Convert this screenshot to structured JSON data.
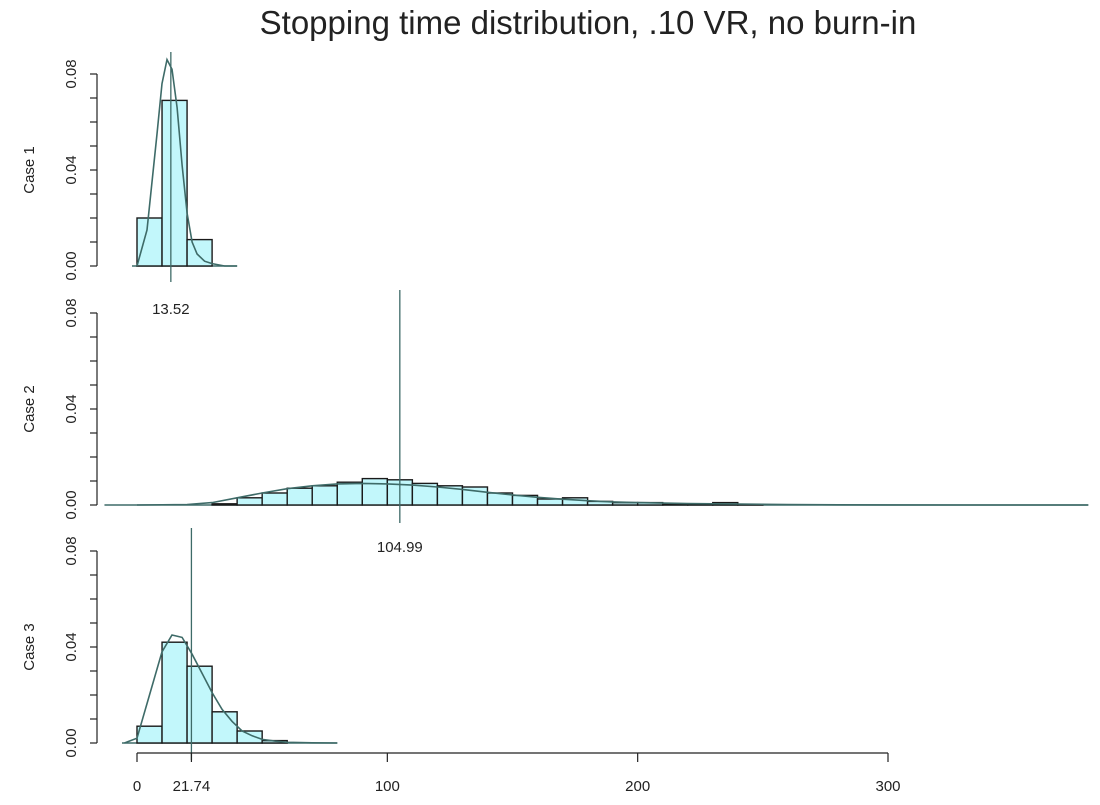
{
  "chart_data": {
    "type": "histogram",
    "title": "Stopping time distribution, .10 VR, no burn-in",
    "xlim": [
      0,
      300
    ],
    "ylim": [
      0,
      0.08
    ],
    "y_ticks": [
      "0.00",
      "0.04",
      "0.08"
    ],
    "x_ticks": [
      "0",
      "21.74",
      "100",
      "200",
      "300"
    ],
    "x_tick_values": [
      0,
      21.74,
      100,
      200,
      300
    ],
    "grid": false,
    "colors": {
      "bar_fill": "#c2f7fb",
      "bar_stroke": "#1a1a1a",
      "density_line": "#3e6b68",
      "mean_line": "#3e6b68",
      "axis": "#222222"
    },
    "panels": [
      {
        "label": "Case 1",
        "mean": 13.52,
        "mean_label": "13.52",
        "bin_width": 10,
        "bins": [
          {
            "start": 0,
            "density": 0.02
          },
          {
            "start": 10,
            "density": 0.069
          },
          {
            "start": 20,
            "density": 0.011
          }
        ],
        "density_curve": [
          [
            0,
            0
          ],
          [
            4,
            0.015
          ],
          [
            8,
            0.055
          ],
          [
            10,
            0.076
          ],
          [
            12,
            0.086
          ],
          [
            14,
            0.082
          ],
          [
            16,
            0.066
          ],
          [
            18,
            0.042
          ],
          [
            20,
            0.022
          ],
          [
            22,
            0.01
          ],
          [
            24,
            0.005
          ],
          [
            27,
            0.002
          ],
          [
            30,
            0.001
          ],
          [
            35,
            0
          ],
          [
            40,
            0
          ]
        ]
      },
      {
        "label": "Case 2",
        "mean": 104.99,
        "mean_label": "104.99",
        "bin_width": 10,
        "bins": [
          {
            "start": 30,
            "density": 0.0005
          },
          {
            "start": 40,
            "density": 0.003
          },
          {
            "start": 50,
            "density": 0.005
          },
          {
            "start": 60,
            "density": 0.007
          },
          {
            "start": 70,
            "density": 0.008
          },
          {
            "start": 80,
            "density": 0.0095
          },
          {
            "start": 90,
            "density": 0.011
          },
          {
            "start": 100,
            "density": 0.0105
          },
          {
            "start": 110,
            "density": 0.009
          },
          {
            "start": 120,
            "density": 0.008
          },
          {
            "start": 130,
            "density": 0.0075
          },
          {
            "start": 140,
            "density": 0.005
          },
          {
            "start": 150,
            "density": 0.004
          },
          {
            "start": 160,
            "density": 0.0025
          },
          {
            "start": 170,
            "density": 0.003
          },
          {
            "start": 180,
            "density": 0.0015
          },
          {
            "start": 190,
            "density": 0.001
          },
          {
            "start": 200,
            "density": 0.001
          },
          {
            "start": 210,
            "density": 0.0005
          },
          {
            "start": 220,
            "density": 0.0005
          },
          {
            "start": 230,
            "density": 0.001
          },
          {
            "start": 240,
            "density": 0.0003
          }
        ],
        "density_curve": [
          [
            0,
            0
          ],
          [
            20,
            0.0002
          ],
          [
            30,
            0.001
          ],
          [
            40,
            0.003
          ],
          [
            50,
            0.005
          ],
          [
            60,
            0.0068
          ],
          [
            70,
            0.008
          ],
          [
            80,
            0.0088
          ],
          [
            90,
            0.009
          ],
          [
            100,
            0.0088
          ],
          [
            110,
            0.0083
          ],
          [
            120,
            0.0075
          ],
          [
            130,
            0.0065
          ],
          [
            140,
            0.0053
          ],
          [
            150,
            0.0042
          ],
          [
            160,
            0.0032
          ],
          [
            170,
            0.0024
          ],
          [
            180,
            0.0018
          ],
          [
            190,
            0.0013
          ],
          [
            200,
            0.001
          ],
          [
            220,
            0.0006
          ],
          [
            240,
            0.0004
          ],
          [
            260,
            0.0002
          ],
          [
            280,
            0.0001
          ],
          [
            300,
            5e-05
          ],
          [
            330,
            0
          ],
          [
            380,
            0
          ]
        ]
      },
      {
        "label": "Case 3",
        "mean": 21.74,
        "mean_label": "21.74",
        "bin_width": 10,
        "bins": [
          {
            "start": 0,
            "density": 0.007
          },
          {
            "start": 10,
            "density": 0.042
          },
          {
            "start": 20,
            "density": 0.032
          },
          {
            "start": 30,
            "density": 0.013
          },
          {
            "start": 40,
            "density": 0.005
          },
          {
            "start": 50,
            "density": 0.001
          }
        ],
        "density_curve": [
          [
            -5,
            0
          ],
          [
            0,
            0.002
          ],
          [
            5,
            0.02
          ],
          [
            10,
            0.038
          ],
          [
            14,
            0.045
          ],
          [
            18,
            0.044
          ],
          [
            22,
            0.037
          ],
          [
            26,
            0.029
          ],
          [
            30,
            0.021
          ],
          [
            34,
            0.014
          ],
          [
            38,
            0.009
          ],
          [
            42,
            0.005
          ],
          [
            46,
            0.003
          ],
          [
            50,
            0.0015
          ],
          [
            55,
            0.0008
          ],
          [
            60,
            0.0003
          ],
          [
            70,
            0.0001
          ],
          [
            80,
            0
          ]
        ]
      }
    ]
  }
}
